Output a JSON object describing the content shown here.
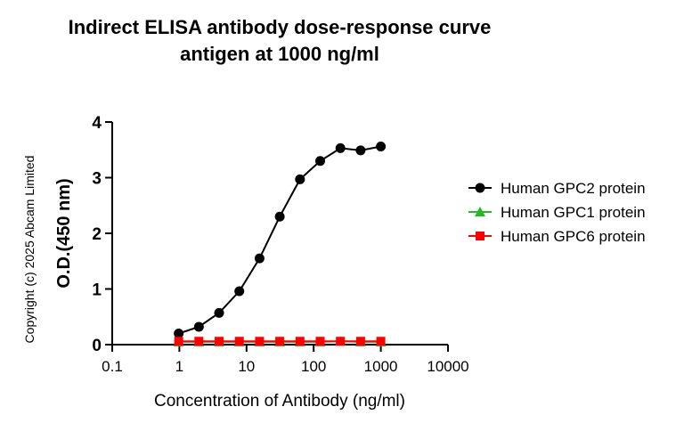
{
  "chart_data": {
    "type": "line",
    "title": [
      "Indirect ELISA antibody dose-response curve",
      "antigen at 1000 ng/ml"
    ],
    "xlabel": "Concentration of Antibody (ng/ml)",
    "ylabel": "O.D.(450 nm)",
    "annotation": "Copyright (c) 2025 Abcam Limited",
    "xscale": "log",
    "x": [
      0.977,
      1.953,
      3.906,
      7.8125,
      15.625,
      31.25,
      62.5,
      125,
      250,
      500,
      1000
    ],
    "xlim": [
      0.1,
      10000
    ],
    "xticks": [
      0.1,
      1,
      10,
      100,
      1000,
      10000
    ],
    "ylim": [
      0,
      4
    ],
    "yticks": [
      0,
      1,
      2,
      3,
      4
    ],
    "legend": "right",
    "series": [
      {
        "name": "Human GPC2 protein",
        "color": "#000000",
        "marker": "circle",
        "values": [
          0.2,
          0.32,
          0.57,
          0.96,
          1.55,
          2.3,
          2.97,
          3.3,
          3.53,
          3.49,
          3.56
        ]
      },
      {
        "name": "Human GPC1 protein",
        "color": "#22bb22",
        "marker": "triangle",
        "values": [
          0.05,
          0.05,
          0.05,
          0.05,
          0.05,
          0.05,
          0.05,
          0.05,
          0.06,
          0.05,
          0.05
        ]
      },
      {
        "name": "Human GPC6 protein",
        "color": "#ff0000",
        "marker": "square",
        "values": [
          0.06,
          0.06,
          0.06,
          0.06,
          0.06,
          0.06,
          0.06,
          0.06,
          0.06,
          0.06,
          0.06
        ]
      }
    ]
  }
}
